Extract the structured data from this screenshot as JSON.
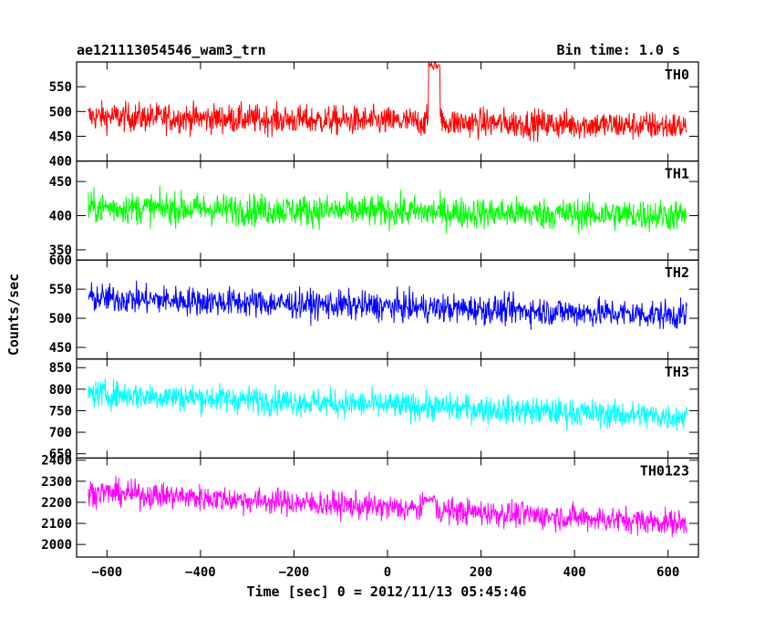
{
  "header": {
    "title": "ae121113054546_wam3_trn",
    "bin_time": "Bin time: 1.0 s"
  },
  "chart_data": {
    "type": "line",
    "xlabel": "Time [sec] 0 = 2012/11/13 05:45:46",
    "ylabel": "Counts/sec",
    "xlim": [
      -665,
      665
    ],
    "x_ticks": [
      -600,
      -400,
      -200,
      0,
      200,
      400,
      600
    ],
    "x_tick_labels": [
      "−600",
      "−400",
      "−200",
      "0",
      "200",
      "400",
      "600"
    ],
    "x_range_data": [
      -640,
      640
    ],
    "bin_time_s": 1.0,
    "panels": [
      {
        "name": "TH0",
        "color": "#ff0000",
        "ylim": [
          400,
          600
        ],
        "y_ticks": [
          400,
          450,
          500,
          550
        ],
        "level_start": 490,
        "level_end": 470,
        "noise_amp": 38,
        "features": [
          {
            "x_center": 100,
            "width": 25,
            "peak": 600
          }
        ]
      },
      {
        "name": "TH1",
        "color": "#00ff00",
        "ylim": [
          335,
          480
        ],
        "y_ticks": [
          350,
          400,
          450
        ],
        "level_start": 412,
        "level_end": 400,
        "noise_amp": 30,
        "features": []
      },
      {
        "name": "TH2",
        "color": "#0000ff",
        "ylim": [
          430,
          600
        ],
        "y_ticks": [
          450,
          500,
          550,
          600
        ],
        "level_start": 535,
        "level_end": 505,
        "noise_amp": 32,
        "features": []
      },
      {
        "name": "TH3",
        "color": "#00ffff",
        "ylim": [
          640,
          870
        ],
        "y_ticks": [
          650,
          700,
          750,
          800,
          850
        ],
        "level_start": 790,
        "level_end": 735,
        "noise_amp": 42,
        "features": []
      },
      {
        "name": "TH0123",
        "color": "#ff00ff",
        "ylim": [
          1940,
          2410
        ],
        "y_ticks": [
          2000,
          2100,
          2200,
          2300,
          2400
        ],
        "level_start": 2250,
        "level_end": 2100,
        "noise_amp": 80,
        "features": [
          {
            "x_center": 90,
            "width": 25,
            "peak": 2230
          }
        ]
      }
    ]
  }
}
